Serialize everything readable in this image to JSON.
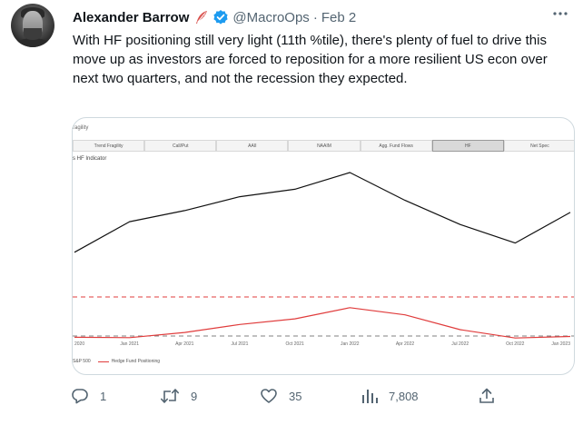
{
  "tweet": {
    "author_name": "Alexander Barrow",
    "handle": "@MacroOps",
    "separator": "·",
    "date": "Feb 2",
    "text": "With HF positioning still very light (11th %tile), there's plenty of fuel to drive this move up as investors are forced to reposition for a more resilient US econ over next two quarters, and not the recession they expected.",
    "icons": [
      "feather-icon",
      "verified-icon",
      "more-icon"
    ]
  },
  "media": {
    "title": "ragility",
    "tabs": [
      "Trend Fragility",
      "Call/Put",
      "AAII",
      "NAAIM",
      "Agg. Fund Flows",
      "HF",
      "Net Spec"
    ],
    "active_tab": "HF",
    "indicator_label": "s HF Indicator"
  },
  "chart_data": {
    "type": "line",
    "xlabel": "",
    "ylabel": "",
    "x_ticks": [
      "2020",
      "Jan 2021",
      "Apr 2021",
      "Jul 2021",
      "Oct 2021",
      "Jan 2022",
      "Apr 2022",
      "Jul 2022",
      "Oct 2022",
      "Jan 2023"
    ],
    "series": [
      {
        "name": "S&P 500",
        "color": "#111111",
        "x": [
          "2020",
          "Jan 2021",
          "Apr 2021",
          "Jul 2021",
          "Oct 2021",
          "Jan 2022",
          "Apr 2022",
          "Jul 2022",
          "Oct 2022",
          "Jan 2023"
        ],
        "values": [
          0.12,
          0.45,
          0.57,
          0.72,
          0.8,
          0.98,
          0.68,
          0.42,
          0.22,
          0.55
        ]
      },
      {
        "name": "Hedge Fund Positioning",
        "color": "#e03c3c",
        "x": [
          "2020",
          "Jan 2021",
          "Apr 2021",
          "Jul 2021",
          "Oct 2021",
          "Jan 2022",
          "Apr 2022",
          "Jul 2022",
          "Oct 2022",
          "Jan 2023"
        ],
        "values": [
          0.06,
          0.05,
          0.18,
          0.38,
          0.52,
          0.8,
          0.62,
          0.25,
          0.04,
          0.08
        ]
      }
    ],
    "reference_lines": [
      {
        "color": "#e03c3c",
        "style": "dashed",
        "level": "upper"
      },
      {
        "color": "#808080",
        "style": "dashed",
        "level": "lower"
      }
    ],
    "grid": false,
    "legend": "bottom-left"
  },
  "actions": {
    "reply": {
      "icon": "reply-icon",
      "count": "1"
    },
    "retweet": {
      "icon": "retweet-icon",
      "count": "9"
    },
    "like": {
      "icon": "heart-icon",
      "count": "35"
    },
    "views": {
      "icon": "views-icon",
      "count": "7,808"
    },
    "share": {
      "icon": "share-icon"
    }
  }
}
